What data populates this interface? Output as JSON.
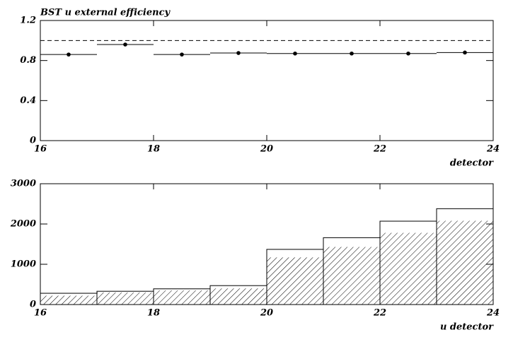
{
  "chart_data": [
    {
      "type": "scatter",
      "title": "BST u external efficiency",
      "x_label": "detector",
      "x": [
        16.5,
        17.5,
        18.5,
        19.5,
        20.5,
        21.5,
        22.5,
        23.5
      ],
      "xerr": [
        0.5,
        0.5,
        0.5,
        0.5,
        0.5,
        0.5,
        0.5,
        0.5
      ],
      "values": [
        0.86,
        0.96,
        0.86,
        0.875,
        0.87,
        0.87,
        0.87,
        0.88
      ],
      "color": "#000000",
      "reference_line": 1,
      "xlim": [
        16,
        24
      ],
      "xticks": [
        16,
        18,
        20,
        22,
        24
      ],
      "ylim": [
        0,
        1.2
      ],
      "yticks": [
        0,
        0.4,
        0.8,
        1.2
      ]
    },
    {
      "type": "histogram",
      "x_label": "u detector",
      "bins": [
        16,
        17,
        18,
        19,
        20,
        21,
        22,
        23,
        24
      ],
      "series": [
        {
          "color": "#000000",
          "hatch": false,
          "values": [
            280,
            330,
            390,
            470,
            1370,
            1660,
            2070,
            2380
          ]
        },
        {
          "color": "#000000",
          "hatch": true,
          "values": [
            220,
            300,
            350,
            400,
            1170,
            1430,
            1780,
            2080
          ]
        }
      ],
      "xlim": [
        16,
        24
      ],
      "xticks": [
        16,
        18,
        20,
        22,
        24
      ],
      "ylim": [
        0,
        3000
      ],
      "yticks": [
        0,
        1000,
        2000,
        3000
      ]
    }
  ]
}
